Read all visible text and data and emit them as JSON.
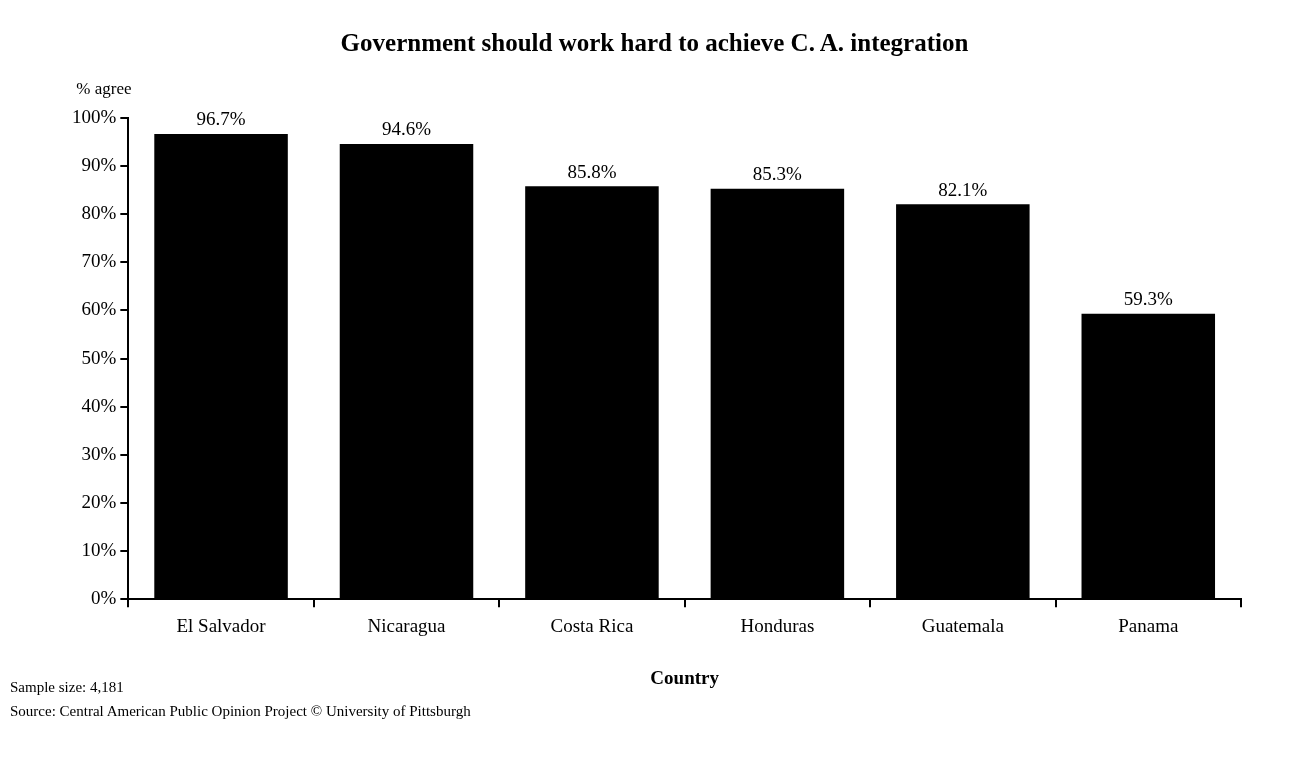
{
  "chart_data": {
    "type": "bar",
    "title": "Government should work hard to achieve C. A. integration",
    "ylabel": "% agree",
    "xlabel": "Country",
    "categories": [
      "El Salvador",
      "Nicaragua",
      "Costa Rica",
      "Honduras",
      "Guatemala",
      "Panama"
    ],
    "values": [
      96.7,
      94.6,
      85.8,
      85.3,
      82.1,
      59.3
    ],
    "value_labels": [
      "96.7%",
      "94.6%",
      "85.8%",
      "85.3%",
      "82.1%",
      "59.3%"
    ],
    "color": "#000000",
    "ylim": [
      0,
      100
    ],
    "yticks": [
      {
        "value": 0,
        "label": "0%"
      },
      {
        "value": 10,
        "label": "10%"
      },
      {
        "value": 20,
        "label": "20%"
      },
      {
        "value": 30,
        "label": "30%"
      },
      {
        "value": 40,
        "label": "40%"
      },
      {
        "value": 50,
        "label": "50%"
      },
      {
        "value": 60,
        "label": "60%"
      },
      {
        "value": 70,
        "label": "70%"
      },
      {
        "value": 80,
        "label": "80%"
      },
      {
        "value": 90,
        "label": "90%"
      },
      {
        "value": 100,
        "label": "100%"
      }
    ],
    "grid": false,
    "legend": false,
    "annotations": [
      "Sample size: 4,181",
      "Source: Central American Public Opinion Project © University of Pittsburgh"
    ]
  }
}
